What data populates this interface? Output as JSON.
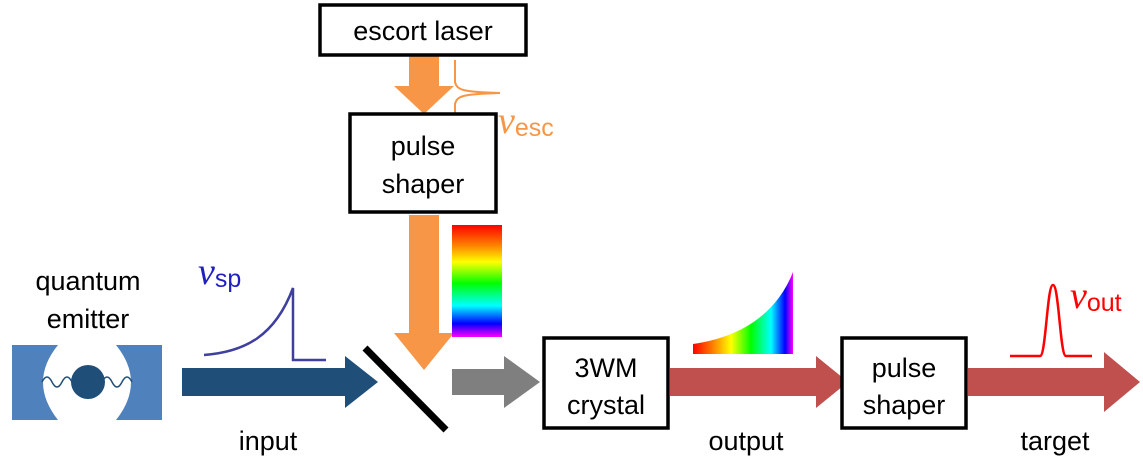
{
  "labels": {
    "escort_laser": "escort laser",
    "pulse_shaper_top_line1": "pulse",
    "pulse_shaper_top_line2": "shaper",
    "quantum_emitter_line1": "quantum",
    "quantum_emitter_line2": "emitter",
    "crystal_line1": "3WM",
    "crystal_line2": "crystal",
    "pulse_shaper_right_line1": "pulse",
    "pulse_shaper_right_line2": "shaper",
    "input": "input",
    "output": "output",
    "target": "target"
  },
  "frequencies": {
    "escort": {
      "symbol": "ν",
      "subscript": "esc"
    },
    "single_photon": {
      "symbol": "ν",
      "subscript": "sp"
    },
    "output": {
      "symbol": "ν",
      "subscript": "out"
    }
  },
  "colors": {
    "escort_beam": "#f79646",
    "input_beam": "#1f4e79",
    "mixer_beam": "#7f7f7f",
    "output_beam": "#c0504d",
    "cavity_mirror": "#4f81bd",
    "emitter_atom": "#1f4e79",
    "sp_pulse": "#3f3f9f",
    "esc_pulse": "#f79646",
    "out_pulse": "#ff0000",
    "esc_label": "#f79646",
    "sp_label": "#2020c0",
    "out_label": "#ff0000"
  },
  "icons": {
    "cavity": "optical-cavity-icon",
    "atom": "atom-icon",
    "mirror": "beam-combiner-mirror-icon",
    "spectrum": "rainbow-spectrum-icon"
  }
}
